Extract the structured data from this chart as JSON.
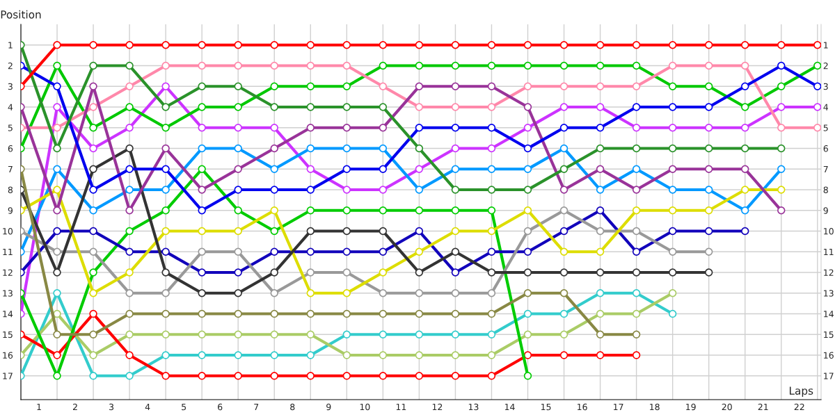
{
  "chart_data": {
    "type": "line",
    "xlabel": "Laps",
    "ylabel": "Position",
    "x": [
      0,
      1,
      2,
      3,
      4,
      5,
      6,
      7,
      8,
      9,
      10,
      11,
      12,
      13,
      14,
      15,
      16,
      17,
      18,
      19,
      20,
      21,
      22
    ],
    "xlim": [
      0,
      22.1
    ],
    "xticks": [
      {
        "value": 0,
        "label": null
      },
      {
        "value": 1,
        "label": null
      },
      {
        "value": 2,
        "label": null
      },
      {
        "value": 3,
        "label": null
      },
      {
        "value": 4,
        "label": null
      },
      {
        "value": 5,
        "label": null
      },
      {
        "value": 6,
        "label": null
      },
      {
        "value": 7,
        "label": null
      },
      {
        "value": 8,
        "label": null
      },
      {
        "value": 9,
        "label": null
      },
      {
        "value": 10,
        "label": null
      },
      {
        "value": 11,
        "label": null
      },
      {
        "value": 12,
        "label": null
      },
      {
        "value": 13,
        "label": null
      },
      {
        "value": 14,
        "label": null
      },
      {
        "value": 15,
        "label": null
      },
      {
        "value": 16,
        "label": null
      },
      {
        "value": 17,
        "label": null
      },
      {
        "value": 18,
        "label": null
      },
      {
        "value": 19,
        "label": null
      },
      {
        "value": 20,
        "label": null
      },
      {
        "value": 21,
        "label": null
      },
      {
        "value": 22,
        "label": null
      },
      {
        "value": 0.5,
        "label": "1"
      },
      {
        "value": 1.5,
        "label": "2"
      },
      {
        "value": 2.5,
        "label": "3"
      },
      {
        "value": 3.5,
        "label": "4"
      },
      {
        "value": 4.5,
        "label": "5"
      },
      {
        "value": 5.5,
        "label": "6"
      },
      {
        "value": 6.5,
        "label": "7"
      },
      {
        "value": 7.5,
        "label": "8"
      },
      {
        "value": 8.5,
        "label": "9"
      },
      {
        "value": 9.5,
        "label": "10"
      },
      {
        "value": 10.5,
        "label": "11"
      },
      {
        "value": 11.5,
        "label": "12"
      },
      {
        "value": 12.5,
        "label": "13"
      },
      {
        "value": 13.5,
        "label": "14"
      },
      {
        "value": 14.5,
        "label": "15"
      },
      {
        "value": 15.5,
        "label": "16"
      },
      {
        "value": 16.5,
        "label": "17"
      },
      {
        "value": 17.5,
        "label": "18"
      },
      {
        "value": 18.5,
        "label": "19"
      },
      {
        "value": 19.5,
        "label": "20"
      },
      {
        "value": 20.5,
        "label": "21"
      },
      {
        "value": 21.5,
        "label": "22"
      }
    ],
    "ylim": [
      18.15,
      0
    ],
    "yticks": [
      1,
      2,
      3,
      4,
      5,
      6,
      7,
      8,
      9,
      10,
      11,
      12,
      13,
      14,
      15,
      16,
      17
    ],
    "y2lim": [
      18.15,
      0
    ],
    "y2ticks": [
      1,
      2,
      3,
      4,
      5,
      6,
      7,
      8,
      9,
      10,
      11,
      12,
      13,
      14,
      15,
      16,
      17
    ],
    "grid": true,
    "marker": "circle",
    "line_style": "solid",
    "series": [
      {
        "color": "#ff0000",
        "values": [
          3,
          1,
          1,
          1,
          1,
          1,
          1,
          1,
          1,
          1,
          1,
          1,
          1,
          1,
          1,
          1,
          1,
          1,
          1,
          1,
          1,
          1,
          1
        ]
      },
      {
        "color": "#2a922a",
        "values": [
          1,
          6,
          2,
          2,
          4,
          3,
          3,
          4,
          4,
          4,
          4,
          6,
          8,
          8,
          8,
          7,
          6,
          6,
          6,
          6,
          6,
          6,
          null
        ]
      },
      {
        "color": "#0000ee",
        "values": [
          2,
          3,
          8,
          7,
          7,
          9,
          8,
          8,
          8,
          7,
          7,
          5,
          5,
          5,
          6,
          5,
          5,
          4,
          4,
          4,
          3,
          2,
          3
        ]
      },
      {
        "color": "#993399",
        "values": [
          4,
          9,
          3,
          9,
          6,
          8,
          7,
          6,
          5,
          5,
          5,
          3,
          3,
          3,
          4,
          8,
          7,
          8,
          7,
          7,
          7,
          9,
          null
        ]
      },
      {
        "color": "#ff88aa",
        "values": [
          5,
          5,
          4,
          3,
          2,
          2,
          2,
          2,
          2,
          2,
          3,
          4,
          4,
          4,
          3,
          3,
          3,
          3,
          2,
          2,
          2,
          5,
          5
        ]
      },
      {
        "color": "#00c800",
        "values": [
          6,
          2,
          5,
          4,
          5,
          4,
          4,
          3,
          3,
          3,
          2,
          2,
          2,
          2,
          2,
          2,
          2,
          2,
          3,
          3,
          4,
          3,
          2
        ]
      },
      {
        "color": "#888844",
        "values": [
          7,
          15,
          15,
          14,
          14,
          14,
          14,
          14,
          14,
          14,
          14,
          14,
          14,
          14,
          13,
          13,
          15,
          15,
          null,
          null,
          null,
          null,
          null
        ]
      },
      {
        "color": "#333333",
        "values": [
          8,
          12,
          7,
          6,
          12,
          13,
          13,
          12,
          10,
          10,
          10,
          12,
          11,
          12,
          12,
          12,
          12,
          12,
          12,
          12,
          null,
          null,
          null
        ]
      },
      {
        "color": "#dddd00",
        "values": [
          9,
          8,
          13,
          12,
          10,
          10,
          10,
          9,
          13,
          13,
          12,
          11,
          10,
          10,
          9,
          11,
          11,
          9,
          9,
          9,
          8,
          8,
          null
        ]
      },
      {
        "color": "#999999",
        "values": [
          10,
          11,
          11,
          13,
          13,
          11,
          11,
          13,
          12,
          12,
          13,
          13,
          13,
          13,
          10,
          9,
          10,
          10,
          11,
          11,
          null,
          null,
          null
        ]
      },
      {
        "color": "#0099ff",
        "values": [
          11,
          7,
          9,
          8,
          8,
          6,
          6,
          7,
          6,
          6,
          6,
          8,
          7,
          7,
          7,
          6,
          8,
          7,
          8,
          8,
          9,
          7,
          null
        ]
      },
      {
        "color": "#1100bb",
        "values": [
          12,
          10,
          10,
          11,
          11,
          12,
          12,
          11,
          11,
          11,
          11,
          10,
          12,
          11,
          11,
          10,
          9,
          11,
          10,
          10,
          10,
          null,
          null
        ]
      },
      {
        "color": "#00cc00",
        "values": [
          13,
          17,
          12,
          10,
          9,
          7,
          9,
          10,
          9,
          9,
          9,
          9,
          9,
          9,
          17,
          null,
          null,
          null,
          null,
          null,
          null,
          null,
          null
        ]
      },
      {
        "color": "#cc33ff",
        "values": [
          14,
          4,
          6,
          5,
          3,
          5,
          5,
          5,
          7,
          8,
          8,
          7,
          6,
          6,
          5,
          4,
          4,
          5,
          5,
          5,
          5,
          4,
          4
        ]
      },
      {
        "color": "#ff0000",
        "values": [
          15,
          16,
          14,
          16,
          17,
          17,
          17,
          17,
          17,
          17,
          17,
          17,
          17,
          17,
          16,
          16,
          16,
          16,
          null,
          null,
          null,
          null,
          null
        ]
      },
      {
        "color": "#aacc66",
        "values": [
          16,
          14,
          16,
          15,
          15,
          15,
          15,
          15,
          15,
          16,
          16,
          16,
          16,
          16,
          15,
          15,
          14,
          14,
          13,
          null,
          null,
          null,
          null
        ]
      },
      {
        "color": "#33cccc",
        "values": [
          17,
          13,
          17,
          17,
          16,
          16,
          16,
          16,
          16,
          15,
          15,
          15,
          15,
          15,
          14,
          14,
          13,
          13,
          14,
          null,
          null,
          null,
          null
        ]
      }
    ]
  }
}
